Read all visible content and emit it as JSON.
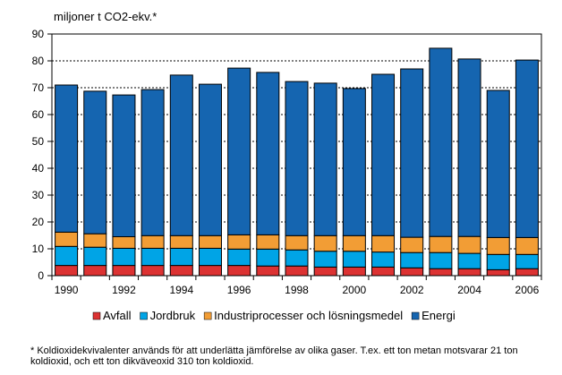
{
  "chart_data": {
    "type": "bar",
    "stacked": true,
    "title": "miljoner t CO2-ekv.*",
    "xlabel": "",
    "ylabel": "",
    "ylim": [
      0,
      90
    ],
    "yticks": [
      0,
      10,
      20,
      30,
      40,
      50,
      60,
      70,
      80,
      90
    ],
    "grid": "horizontal dashed",
    "legend": "bottom",
    "categories": [
      "1990",
      "1991",
      "1992",
      "1993",
      "1994",
      "1995",
      "1996",
      "1997",
      "1998",
      "1999",
      "2000",
      "2001",
      "2002",
      "2003",
      "2004",
      "2005",
      "2006"
    ],
    "xtick_labels": [
      "1990",
      "1992",
      "1994",
      "1996",
      "1998",
      "2000",
      "2002",
      "2004",
      "2006"
    ],
    "series": [
      {
        "name": "Avfall",
        "color": "#dc3232",
        "values": [
          3.8,
          3.8,
          3.8,
          3.8,
          3.8,
          3.8,
          3.8,
          3.6,
          3.6,
          3.2,
          3.2,
          3.2,
          2.9,
          2.6,
          2.6,
          2.2,
          2.6
        ]
      },
      {
        "name": "Jordbruk",
        "color": "#00a4e6",
        "values": [
          7.1,
          6.8,
          6.4,
          6.4,
          6.4,
          6.4,
          6.1,
          6.3,
          6.0,
          5.9,
          5.9,
          5.6,
          5.7,
          6.0,
          5.7,
          5.7,
          5.3
        ]
      },
      {
        "name": "Industriprocesser och lösningsmedel",
        "color": "#f29d35",
        "values": [
          5.3,
          5.0,
          4.3,
          4.7,
          4.7,
          4.7,
          5.3,
          5.3,
          5.3,
          5.8,
          5.8,
          6.1,
          5.7,
          6.0,
          6.3,
          6.3,
          6.3
        ]
      },
      {
        "name": "Energi",
        "color": "#1565b0",
        "values": [
          54.8,
          53.1,
          52.8,
          54.4,
          59.8,
          56.4,
          62.1,
          60.5,
          57.4,
          56.8,
          54.8,
          60.1,
          62.7,
          70.1,
          66.1,
          54.8,
          66.1
        ]
      }
    ],
    "footnote": "* Koldioxidekvivalenter används för att underlätta jämförelse av olika gaser. T.ex. ett ton metan motsvarar 21 ton koldioxid, och ett ton dikväveoxid 310 ton koldioxid."
  }
}
